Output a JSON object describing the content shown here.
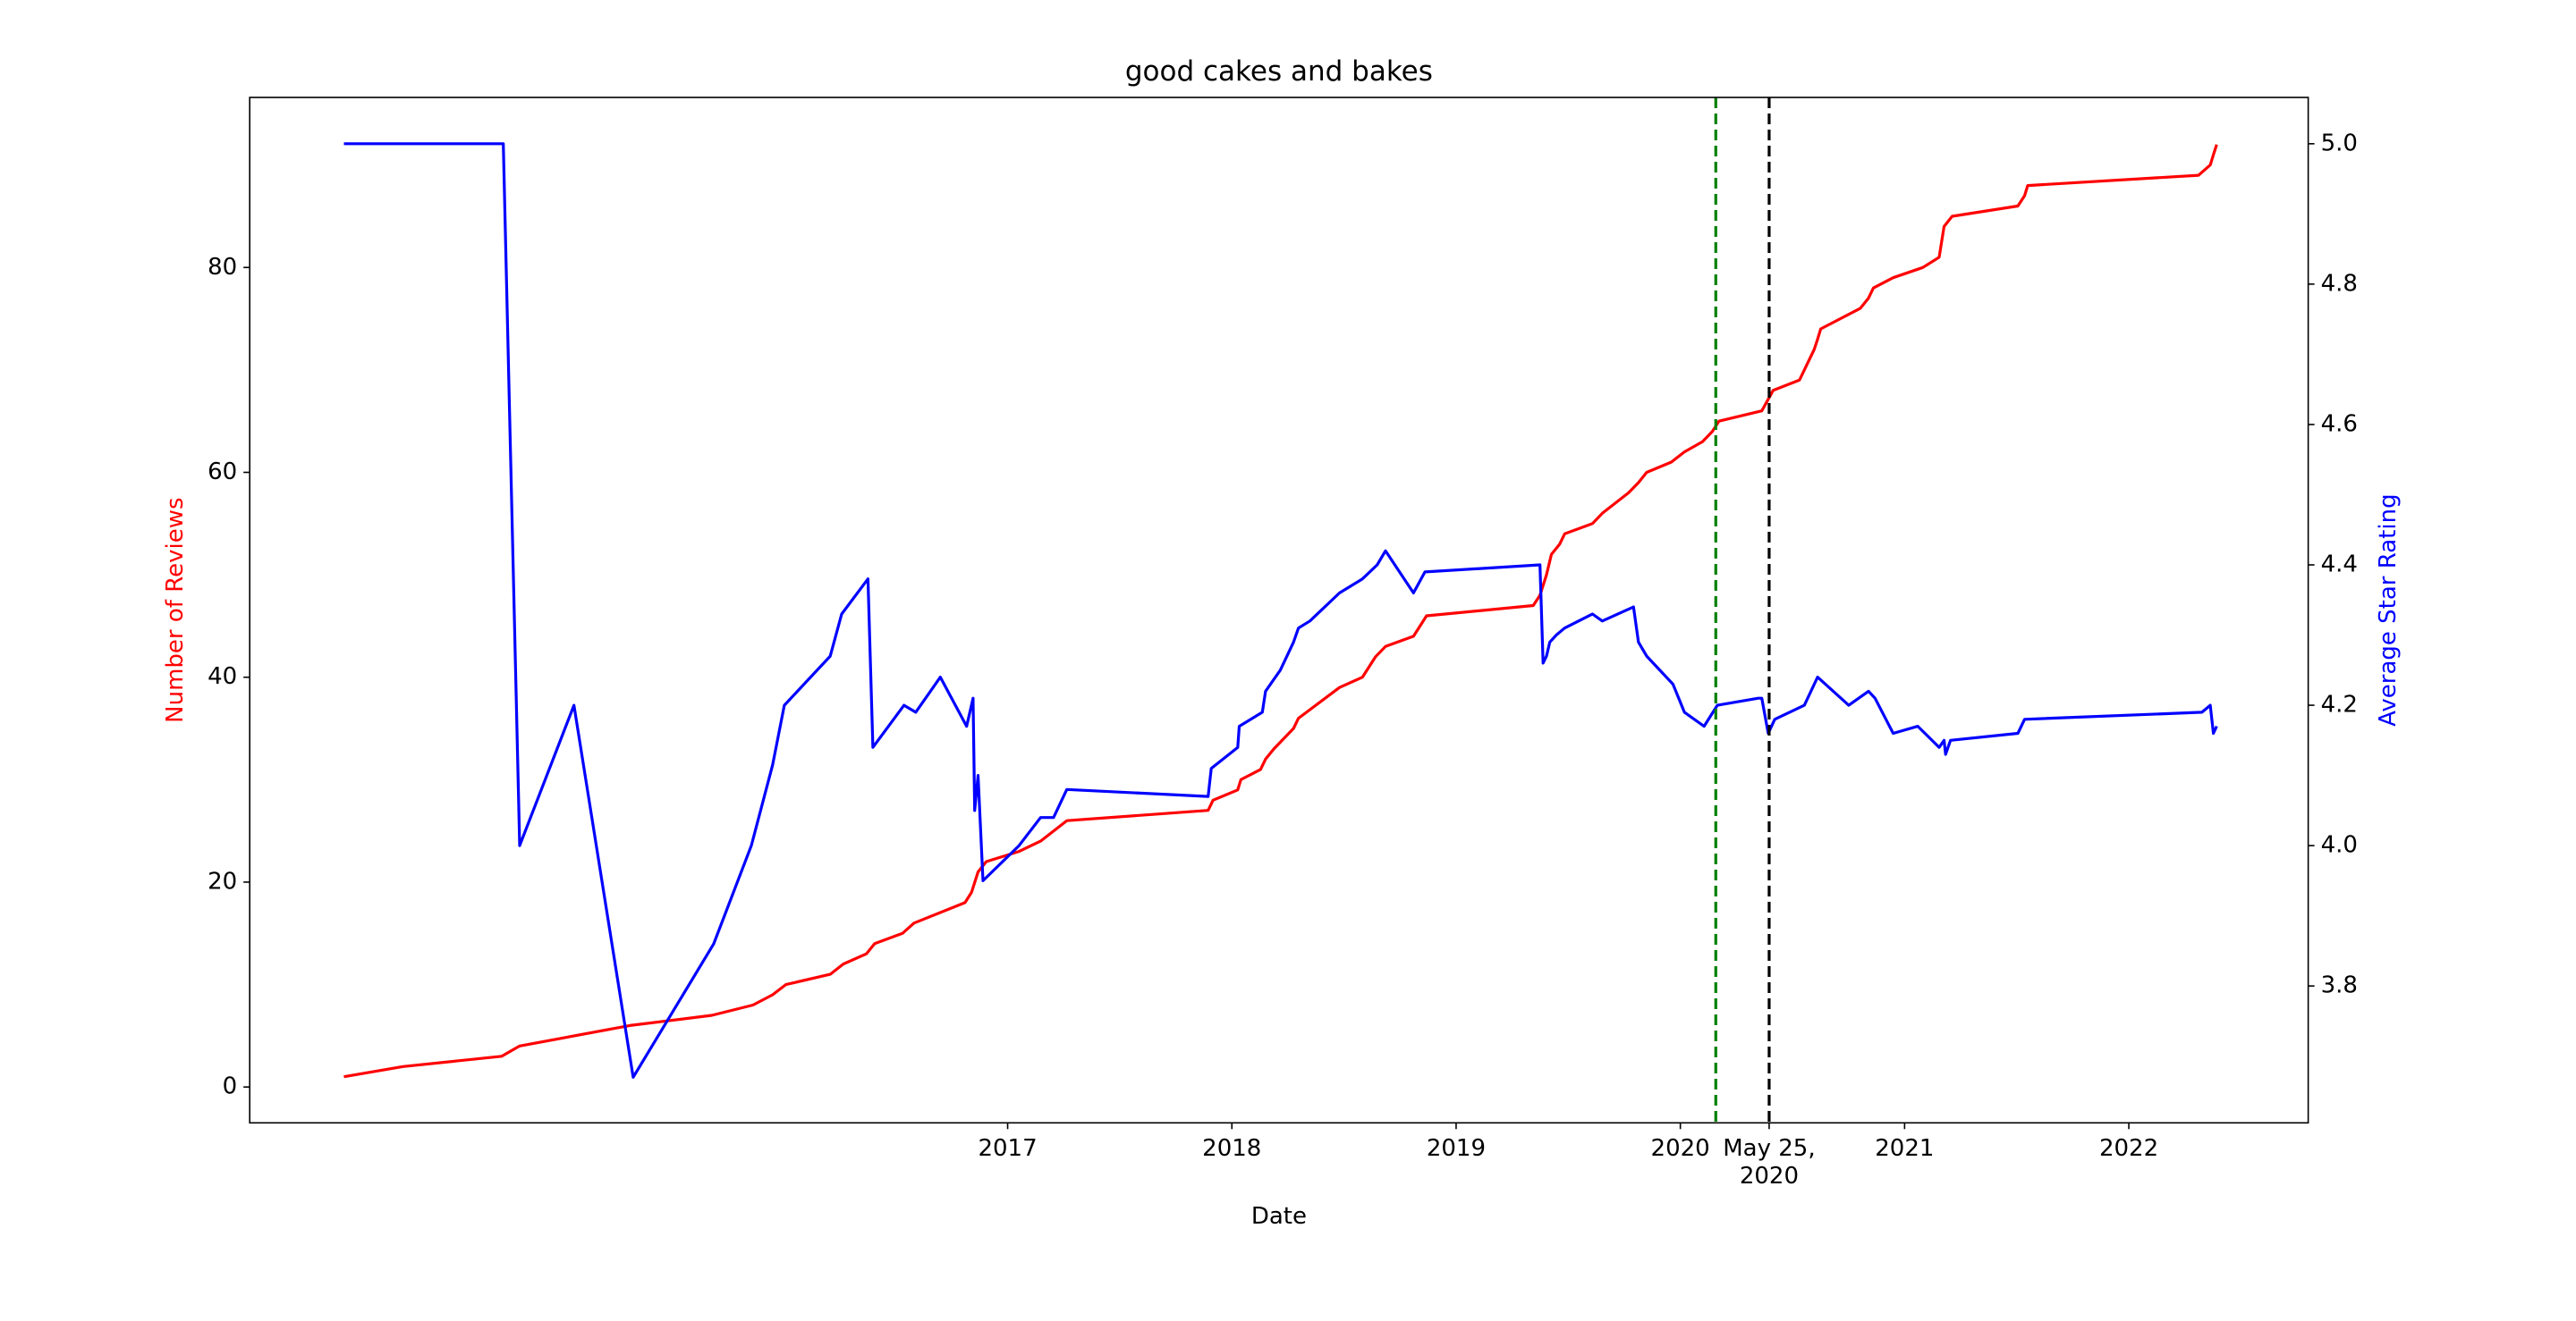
{
  "chart_data": {
    "type": "line",
    "title": "good cakes and bakes",
    "x_label": "Date",
    "y_label": "Number of Reviews",
    "y2_label": "Average Star Rating",
    "xlim": [
      2013.62,
      2022.8
    ],
    "ylim": [
      -3.5,
      96.6
    ],
    "y2lim": [
      3.605,
      5.066
    ],
    "xticks": [
      2017,
      2018,
      2019,
      2020,
      {
        "value": 2020.396,
        "label": "May 25, 2020"
      },
      2021,
      2022
    ],
    "yticks": [
      0,
      20,
      40,
      60,
      80
    ],
    "y2ticks": [
      3.8,
      {
        "value": 4,
        "label": "4.0"
      },
      4.2,
      4.4,
      4.6,
      4.8,
      {
        "value": 5,
        "label": "5.0"
      }
    ],
    "vlines": [
      {
        "x": 2020.158,
        "color": "green"
      },
      {
        "x": 2020.396,
        "color": "black"
      }
    ],
    "series": [
      {
        "name": "Number of Reviews",
        "color": "red",
        "axis": "y",
        "x": [
          2014.04,
          2014.304,
          2014.744,
          2014.824,
          2015.315,
          2015.681,
          2015.864,
          2015.952,
          2016.011,
          2016.209,
          2016.267,
          2016.37,
          2016.407,
          2016.531,
          2016.582,
          2016.81,
          2016.839,
          2016.868,
          2016.905,
          2017.051,
          2017.147,
          2017.264,
          2017.894,
          2017.916,
          2018.026,
          2018.04,
          2018.128,
          2018.15,
          2018.187,
          2018.275,
          2018.297,
          2018.48,
          2018.582,
          2018.641,
          2018.685,
          2018.81,
          2018.868,
          2019.344,
          2019.374,
          2019.403,
          2019.425,
          2019.462,
          2019.484,
          2019.608,
          2019.652,
          2019.769,
          2019.813,
          2019.85,
          2019.96,
          2020.018,
          2020.099,
          2020.143,
          2020.172,
          2020.363,
          2020.414,
          2020.531,
          2020.597,
          2020.612,
          2020.626,
          2020.802,
          2020.839,
          2020.861,
          2020.949,
          2021.081,
          2021.154,
          2021.176,
          2021.212,
          2021.505,
          2021.535,
          2021.549,
          2022.311,
          2022.363,
          2022.377,
          2022.392
        ],
        "values": [
          1,
          2,
          3,
          4,
          6,
          7,
          8,
          9,
          10,
          11,
          12,
          13,
          14,
          15,
          16,
          18,
          19,
          21,
          22,
          23,
          24,
          26,
          27,
          28,
          29,
          30,
          31,
          32,
          33,
          35,
          36,
          39,
          40,
          42,
          43,
          44,
          46,
          47,
          48,
          50,
          52,
          53,
          54,
          55,
          56,
          58,
          59,
          60,
          61,
          62,
          63,
          64,
          65,
          66,
          68,
          69,
          72,
          73,
          74,
          76,
          77,
          78,
          79,
          80,
          81,
          84,
          85,
          86,
          87,
          88,
          89,
          90,
          91,
          92
        ]
      },
      {
        "name": "Average Star Rating",
        "color": "blue",
        "axis": "y2",
        "x": [
          2014.04,
          2014.751,
          2014.824,
          2015.066,
          2015.33,
          2015.689,
          2015.857,
          2015.952,
          2016.004,
          2016.209,
          2016.26,
          2016.377,
          2016.399,
          2016.538,
          2016.59,
          2016.7,
          2016.817,
          2016.846,
          2016.853,
          2016.868,
          2016.89,
          2017.051,
          2017.147,
          2017.205,
          2017.264,
          2017.894,
          2017.908,
          2018.026,
          2018.033,
          2018.136,
          2018.15,
          2018.216,
          2018.275,
          2018.297,
          2018.348,
          2018.48,
          2018.582,
          2018.648,
          2018.685,
          2018.81,
          2018.861,
          2019.374,
          2019.388,
          2019.403,
          2019.418,
          2019.447,
          2019.484,
          2019.608,
          2019.652,
          2019.791,
          2019.813,
          2019.85,
          2019.967,
          2020.018,
          2020.106,
          2020.165,
          2020.348,
          2020.363,
          2020.392,
          2020.421,
          2020.553,
          2020.612,
          2020.751,
          2020.839,
          2020.868,
          2020.949,
          2021.059,
          2021.154,
          2021.176,
          2021.183,
          2021.205,
          2021.505,
          2021.535,
          2022.326,
          2022.363,
          2022.377,
          2022.392
        ],
        "values": [
          5.0,
          5.0,
          4.0,
          4.2,
          3.67,
          3.86,
          4.0,
          4.115,
          4.2,
          4.27,
          4.33,
          4.38,
          4.14,
          4.2,
          4.19,
          4.24,
          4.17,
          4.21,
          4.05,
          4.1,
          3.95,
          4.0,
          4.04,
          4.04,
          4.08,
          4.07,
          4.11,
          4.14,
          4.17,
          4.19,
          4.22,
          4.25,
          4.29,
          4.31,
          4.32,
          4.36,
          4.38,
          4.4,
          4.42,
          4.36,
          4.39,
          4.4,
          4.26,
          4.27,
          4.29,
          4.3,
          4.31,
          4.33,
          4.32,
          4.34,
          4.29,
          4.27,
          4.23,
          4.19,
          4.17,
          4.2,
          4.21,
          4.21,
          4.16,
          4.18,
          4.2,
          4.24,
          4.2,
          4.22,
          4.21,
          4.16,
          4.17,
          4.14,
          4.15,
          4.13,
          4.15,
          4.16,
          4.18,
          4.19,
          4.2,
          4.16,
          4.17
        ]
      }
    ]
  }
}
